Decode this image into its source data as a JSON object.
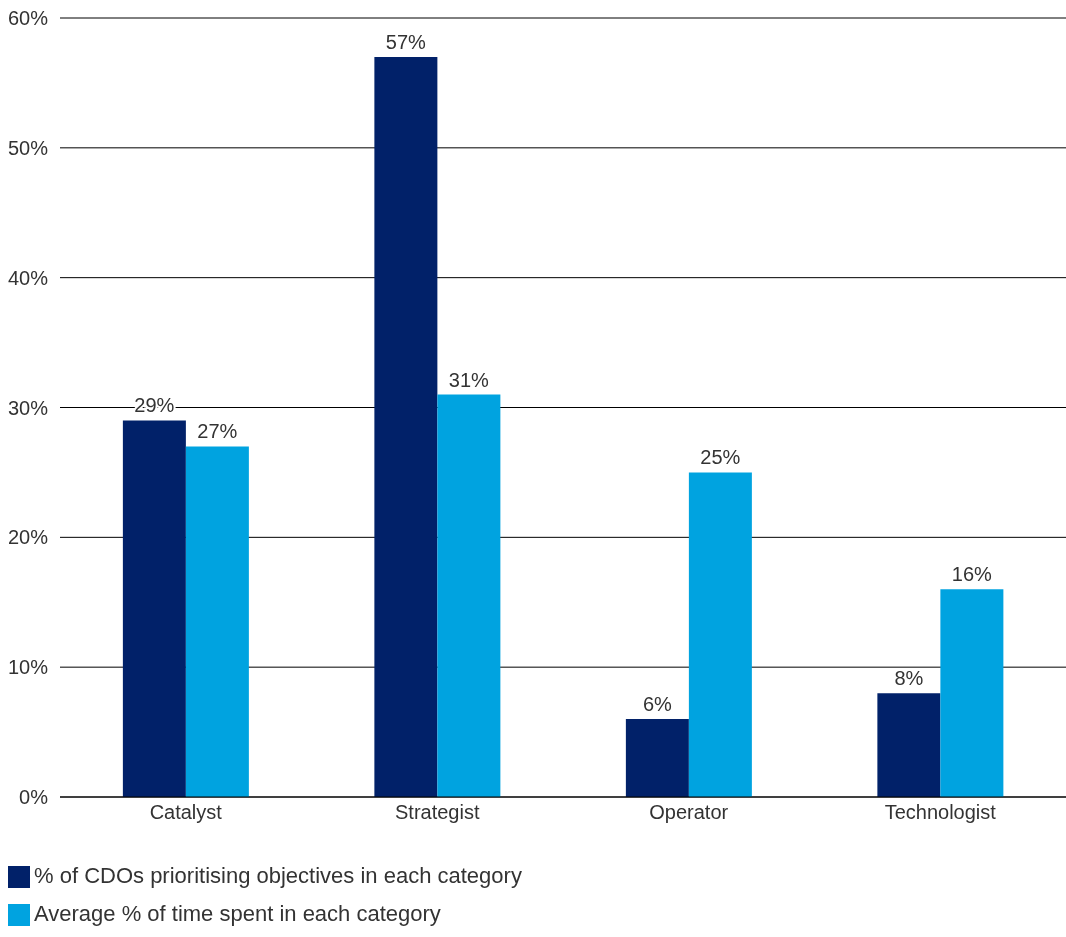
{
  "chart_data": {
    "type": "bar",
    "categories": [
      "Catalyst",
      "Strategist",
      "Operator",
      "Technologist"
    ],
    "series": [
      {
        "name": "% of CDOs prioritising objectives in each category",
        "color": "#012169",
        "values": [
          29,
          57,
          6,
          8
        ],
        "value_labels": [
          "29%",
          "57%",
          "6%",
          "8%"
        ]
      },
      {
        "name": "Average % of time spent in each category",
        "color": "#00a3e0",
        "values": [
          27,
          31,
          25,
          16
        ],
        "value_labels": [
          "27%",
          "31%",
          "25%",
          "16%"
        ]
      }
    ],
    "ylim": [
      0,
      60
    ],
    "yticks": [
      {
        "value": 0,
        "label": "0%"
      },
      {
        "value": 10,
        "label": "10%"
      },
      {
        "value": 20,
        "label": "20%"
      },
      {
        "value": 30,
        "label": "30%"
      },
      {
        "value": 40,
        "label": "40%"
      },
      {
        "value": 50,
        "label": "50%"
      },
      {
        "value": 60,
        "label": "60%"
      }
    ],
    "grid": "y",
    "legend": "bottom left"
  }
}
